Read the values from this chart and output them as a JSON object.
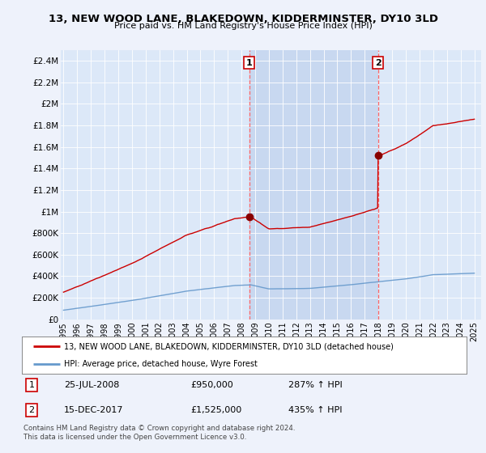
{
  "title": "13, NEW WOOD LANE, BLAKEDOWN, KIDDERMINSTER, DY10 3LD",
  "subtitle": "Price paid vs. HM Land Registry's House Price Index (HPI)",
  "legend_line1": "13, NEW WOOD LANE, BLAKEDOWN, KIDDERMINSTER, DY10 3LD (detached house)",
  "legend_line2": "HPI: Average price, detached house, Wyre Forest",
  "annotation1_date": "25-JUL-2008",
  "annotation1_price": "£950,000",
  "annotation1_hpi": "287% ↑ HPI",
  "annotation2_date": "15-DEC-2017",
  "annotation2_price": "£1,525,000",
  "annotation2_hpi": "435% ↑ HPI",
  "footer": "Contains HM Land Registry data © Crown copyright and database right 2024.\nThis data is licensed under the Open Government Licence v3.0.",
  "bg_color": "#eef2fb",
  "plot_bg_color": "#dce8f8",
  "highlight_color": "#c8d8f0",
  "red_line_color": "#cc0000",
  "blue_line_color": "#6699cc",
  "vline_color": "#ff6666",
  "ylim_max": 2500000,
  "yticks": [
    0,
    200000,
    400000,
    600000,
    800000,
    1000000,
    1200000,
    1400000,
    1600000,
    1800000,
    2000000,
    2200000,
    2400000
  ],
  "xlim_start": 1994.8,
  "xlim_end": 2025.5,
  "t1": 2008.56,
  "t2": 2017.96,
  "price1": 950000,
  "price2": 1525000
}
